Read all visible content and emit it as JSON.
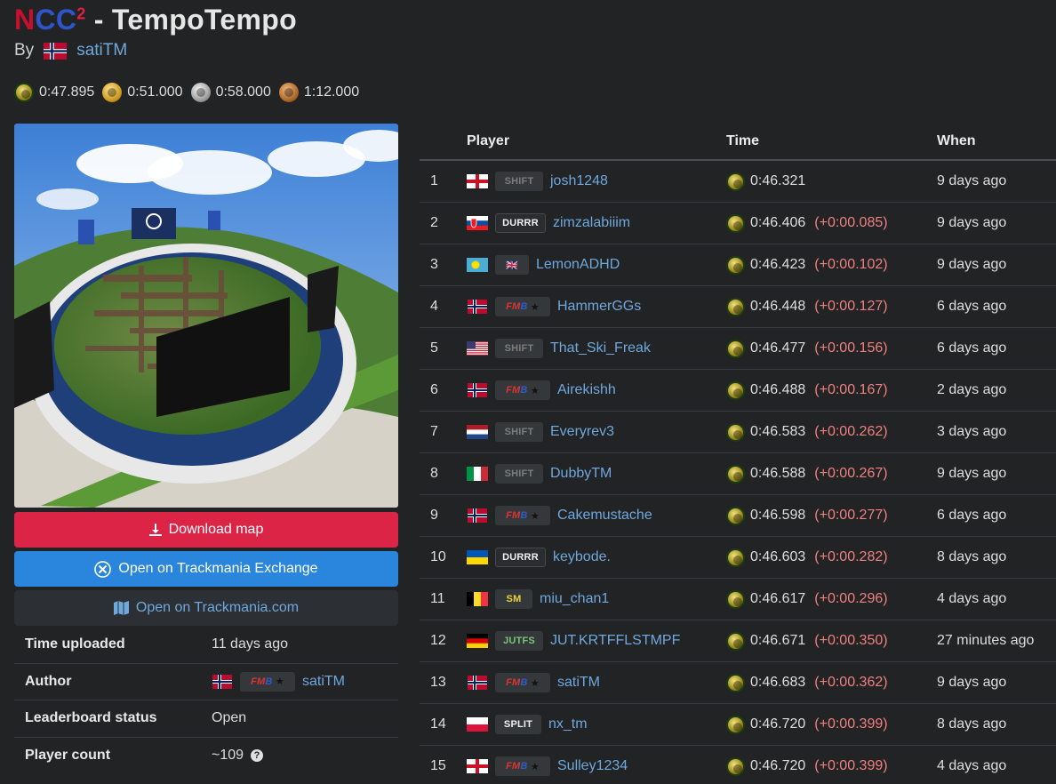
{
  "header": {
    "title_prefix_n": "N",
    "title_prefix_c1": "C",
    "title_prefix_c2": "C",
    "title_sup": "2",
    "title_rest": " - TempoTempo",
    "by_label": "By",
    "author": "satiTM"
  },
  "medals": [
    {
      "type": "author",
      "time": "0:47.895"
    },
    {
      "type": "gold",
      "time": "0:51.000"
    },
    {
      "type": "silver",
      "time": "0:58.000"
    },
    {
      "type": "bronze",
      "time": "1:12.000"
    }
  ],
  "buttons": {
    "download": "Download map",
    "tmx": "Open on Trackmania Exchange",
    "tmcom": "Open on Trackmania.com"
  },
  "info": {
    "time_uploaded_label": "Time uploaded",
    "time_uploaded_value": "11 days ago",
    "author_label": "Author",
    "author_value": "satiTM",
    "author_tag": "FMB",
    "status_label": "Leaderboard status",
    "status_value": "Open",
    "count_label": "Player count",
    "count_value": "~109"
  },
  "leaderboard": {
    "headers": {
      "player": "Player",
      "time": "Time",
      "when": "When"
    },
    "rows": [
      {
        "rank": "1",
        "flag": "england",
        "tag": "SHIFT",
        "tag_type": "shift",
        "player": "josh1248",
        "time": "0:46.321",
        "diff": "",
        "when": "9 days ago"
      },
      {
        "rank": "2",
        "flag": "slovakia",
        "tag": "DURRR",
        "tag_type": "durrr",
        "player": "zimzalabiiim",
        "time": "0:46.406",
        "diff": "(+0:00.085)",
        "when": "9 days ago"
      },
      {
        "rank": "3",
        "flag": "palau",
        "tag": "UK",
        "tag_type": "uk",
        "player": "LemonADHD",
        "time": "0:46.423",
        "diff": "(+0:00.102)",
        "when": "9 days ago"
      },
      {
        "rank": "4",
        "flag": "norway",
        "tag": "FMB",
        "tag_type": "fmb",
        "player": "HammerGGs",
        "time": "0:46.448",
        "diff": "(+0:00.127)",
        "when": "6 days ago"
      },
      {
        "rank": "5",
        "flag": "usa",
        "tag": "SHIFT",
        "tag_type": "shift",
        "player": "That_Ski_Freak",
        "time": "0:46.477",
        "diff": "(+0:00.156)",
        "when": "6 days ago"
      },
      {
        "rank": "6",
        "flag": "norway",
        "tag": "FMB",
        "tag_type": "fmb",
        "player": "Airekishh",
        "time": "0:46.488",
        "diff": "(+0:00.167)",
        "when": "2 days ago"
      },
      {
        "rank": "7",
        "flag": "netherlands",
        "tag": "SHIFT",
        "tag_type": "shift",
        "player": "Everyrev3",
        "time": "0:46.583",
        "diff": "(+0:00.262)",
        "when": "3 days ago"
      },
      {
        "rank": "8",
        "flag": "italy",
        "tag": "SHIFT",
        "tag_type": "shift",
        "player": "DubbyTM",
        "time": "0:46.588",
        "diff": "(+0:00.267)",
        "when": "9 days ago"
      },
      {
        "rank": "9",
        "flag": "norway",
        "tag": "FMB",
        "tag_type": "fmb",
        "player": "Cakemustache",
        "time": "0:46.598",
        "diff": "(+0:00.277)",
        "when": "6 days ago"
      },
      {
        "rank": "10",
        "flag": "ukraine",
        "tag": "DURRR",
        "tag_type": "durrr",
        "player": "keybode.",
        "time": "0:46.603",
        "diff": "(+0:00.282)",
        "when": "8 days ago"
      },
      {
        "rank": "11",
        "flag": "belgium",
        "tag": "SM",
        "tag_type": "sm",
        "player": "miu_chan1",
        "time": "0:46.617",
        "diff": "(+0:00.296)",
        "when": "4 days ago"
      },
      {
        "rank": "12",
        "flag": "germany",
        "tag": "JUTFS",
        "tag_type": "jutfs",
        "player": "JUT.KRTFFLSTMPF",
        "time": "0:46.671",
        "diff": "(+0:00.350)",
        "when": "27 minutes ago"
      },
      {
        "rank": "13",
        "flag": "norway",
        "tag": "FMB",
        "tag_type": "fmb",
        "player": "satiTM",
        "time": "0:46.683",
        "diff": "(+0:00.362)",
        "when": "9 days ago"
      },
      {
        "rank": "14",
        "flag": "poland",
        "tag": "SPLIT",
        "tag_type": "split",
        "player": "nx_tm",
        "time": "0:46.720",
        "diff": "(+0:00.399)",
        "when": "8 days ago"
      },
      {
        "rank": "15",
        "flag": "england",
        "tag": "FMB",
        "tag_type": "fmb",
        "player": "Sulley1234",
        "time": "0:46.720",
        "diff": "(+0:00.399)",
        "when": "4 days ago"
      }
    ]
  }
}
